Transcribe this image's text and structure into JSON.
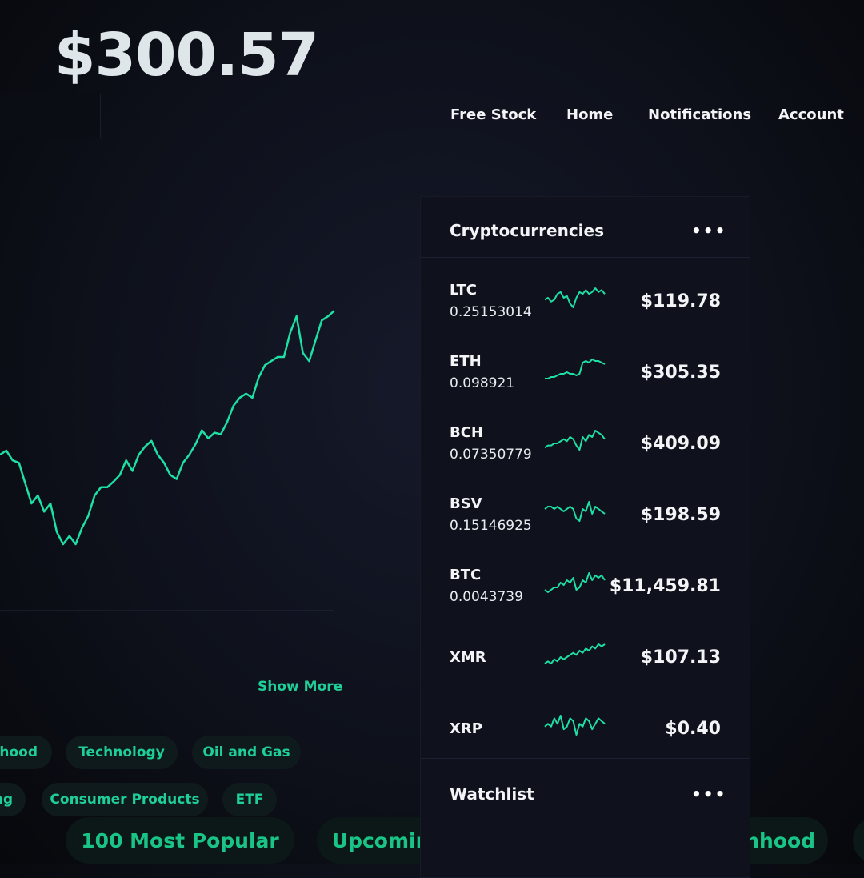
{
  "portfolio": {
    "value": "$300.57",
    "chart_values": [
      198,
      203,
      191,
      188,
      163,
      138,
      148,
      128,
      138,
      103,
      88,
      98,
      88,
      108,
      123,
      148,
      158,
      158,
      165,
      173,
      191,
      178,
      198,
      208,
      215,
      198,
      188,
      173,
      168,
      188,
      198,
      211,
      228,
      218,
      225,
      223,
      238,
      258,
      268,
      273,
      268,
      293,
      308,
      313,
      318,
      318,
      348,
      368,
      323,
      313,
      338,
      363,
      368,
      375
    ],
    "line_color": "#1fe0a4"
  },
  "nav": {
    "free_stock": "Free Stock",
    "home": "Home",
    "notifications": "Notifications",
    "account": "Account"
  },
  "show_more": "Show More",
  "pills": {
    "row1": [
      "nhood",
      "Technology",
      "Oil and Gas"
    ],
    "row2": [
      "ng",
      "Consumer Products",
      "ETF"
    ],
    "row3": [
      "100 Most Popular",
      "Upcoming Earnings",
      "New On Robinhood"
    ]
  },
  "crypto": {
    "title": "Cryptocurrencies",
    "more": "•••",
    "items": [
      {
        "symbol": "LTC",
        "amount": "0.25153014",
        "price": "$119.78",
        "spark": [
          5,
          6,
          4,
          5,
          8,
          9,
          6,
          7,
          3,
          1,
          6,
          9,
          8,
          10,
          8,
          9,
          11,
          9,
          10,
          8
        ]
      },
      {
        "symbol": "ETH",
        "amount": "0.098921",
        "price": "$305.35",
        "spark": [
          2,
          2,
          3,
          3,
          4,
          5,
          5,
          6,
          5,
          5,
          4,
          5,
          12,
          13,
          12,
          14,
          13,
          13,
          12,
          11
        ]
      },
      {
        "symbol": "BCH",
        "amount": "0.07350779",
        "price": "$409.09",
        "spark": [
          4,
          5,
          5,
          6,
          6,
          7,
          8,
          7,
          9,
          8,
          5,
          3,
          9,
          7,
          10,
          9,
          12,
          11,
          10,
          8
        ]
      },
      {
        "symbol": "BSV",
        "amount": "0.15146925",
        "price": "$198.59",
        "spark": [
          8,
          9,
          9,
          8,
          9,
          8,
          7,
          8,
          9,
          8,
          4,
          3,
          8,
          7,
          11,
          6,
          9,
          8,
          7,
          6
        ]
      },
      {
        "symbol": "BTC",
        "amount": "0.0043739",
        "price": "$11,459.81",
        "spark": [
          5,
          4,
          5,
          6,
          6,
          8,
          7,
          9,
          8,
          10,
          5,
          6,
          9,
          8,
          12,
          9,
          11,
          10,
          11,
          9
        ]
      },
      {
        "symbol": "XMR",
        "amount": "",
        "price": "$107.13",
        "spark": [
          3,
          4,
          3,
          5,
          4,
          6,
          5,
          6,
          7,
          8,
          7,
          9,
          8,
          10,
          9,
          11,
          10,
          12,
          11,
          12
        ]
      },
      {
        "symbol": "XRP",
        "amount": "",
        "price": "$0.40",
        "spark": [
          7,
          8,
          7,
          10,
          8,
          11,
          6,
          7,
          10,
          9,
          4,
          8,
          7,
          10,
          9,
          6,
          8,
          10,
          9,
          8
        ]
      }
    ]
  },
  "watchlist": {
    "title": "Watchlist",
    "more": "•••"
  }
}
